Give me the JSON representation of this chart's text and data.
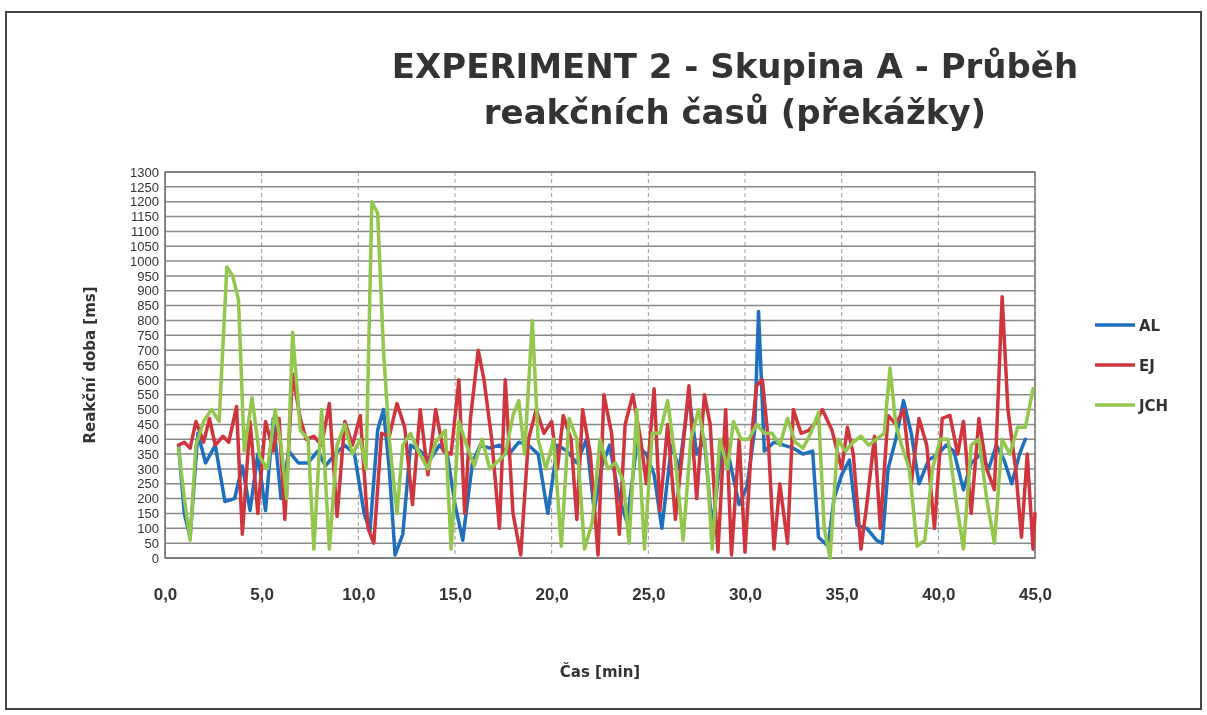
{
  "chart_data": {
    "type": "line",
    "title": "EXPERIMENT 2 - Skupina A - Průběh reakčních časů (překážky)",
    "xlabel": "Čas [min]",
    "ylabel": "Reakční doba [ms]",
    "xlim": [
      0,
      45
    ],
    "xticks": [
      {
        "value": 0,
        "label": "0,0"
      },
      {
        "value": 5,
        "label": "5,0"
      },
      {
        "value": 10,
        "label": "10,0"
      },
      {
        "value": 15,
        "label": "15,0"
      },
      {
        "value": 20,
        "label": "20,0"
      },
      {
        "value": 25,
        "label": "25,0"
      },
      {
        "value": 30,
        "label": "30,0"
      },
      {
        "value": 35,
        "label": "35,0"
      },
      {
        "value": 40,
        "label": "40,0"
      },
      {
        "value": 45,
        "label": "45,0"
      }
    ],
    "ylim": [
      0,
      1300
    ],
    "yticks": [
      0,
      50,
      100,
      150,
      200,
      250,
      300,
      350,
      400,
      450,
      500,
      550,
      600,
      650,
      700,
      750,
      800,
      850,
      900,
      950,
      1000,
      1050,
      1100,
      1150,
      1200,
      1250,
      1300
    ],
    "grid": true,
    "legend": "right",
    "line_style": "solid",
    "series": [
      {
        "name": "AL",
        "color": "#1f6fbf",
        "x": [
          0.7,
          1.0,
          1.3,
          1.7,
          2.1,
          2.6,
          3.1,
          3.6,
          4.0,
          4.4,
          4.8,
          5.2,
          5.6,
          6.0,
          6.4,
          6.9,
          7.4,
          7.9,
          8.3,
          8.8,
          9.3,
          9.8,
          10.3,
          10.6,
          11.0,
          11.3,
          11.6,
          11.9,
          12.3,
          12.7,
          13.2,
          13.7,
          14.2,
          14.6,
          15.0,
          15.4,
          15.9,
          16.3,
          16.8,
          17.3,
          17.8,
          18.3,
          18.8,
          19.3,
          19.8,
          20.3,
          20.8,
          21.3,
          21.8,
          22.2,
          22.6,
          23.0,
          23.5,
          23.9,
          24.4,
          24.9,
          25.3,
          25.7,
          26.2,
          26.6,
          27.1,
          27.5,
          27.9,
          28.3,
          28.8,
          29.2,
          29.7,
          30.1,
          30.5,
          30.7,
          31.0,
          31.5,
          32.0,
          32.5,
          33.0,
          33.5,
          33.8,
          34.3,
          34.6,
          35.0,
          35.4,
          35.8,
          36.3,
          36.8,
          37.1,
          37.4,
          37.8,
          38.2,
          38.6,
          39.0,
          39.5,
          40.0,
          40.4,
          40.8,
          41.3,
          41.7,
          42.2,
          42.6,
          43.0,
          43.4,
          43.8,
          44.2,
          44.5
        ],
        "values": [
          380,
          150,
          70,
          420,
          320,
          380,
          190,
          200,
          310,
          160,
          350,
          160,
          470,
          200,
          360,
          320,
          320,
          360,
          310,
          350,
          380,
          350,
          150,
          90,
          430,
          500,
          300,
          10,
          80,
          380,
          360,
          330,
          380,
          350,
          180,
          60,
          320,
          380,
          370,
          380,
          350,
          390,
          380,
          350,
          150,
          380,
          360,
          320,
          400,
          160,
          310,
          380,
          200,
          120,
          380,
          350,
          280,
          100,
          380,
          300,
          550,
          350,
          400,
          100,
          370,
          330,
          180,
          240,
          430,
          830,
          360,
          390,
          380,
          370,
          350,
          360,
          70,
          40,
          200,
          280,
          330,
          110,
          100,
          60,
          50,
          300,
          400,
          530,
          420,
          250,
          330,
          350,
          380,
          360,
          230,
          320,
          350,
          300,
          380,
          330,
          250,
          350,
          400
        ]
      },
      {
        "name": "EJ",
        "color": "#d0343c",
        "x": [
          0.7,
          1.0,
          1.3,
          1.6,
          2.0,
          2.3,
          2.6,
          3.0,
          3.3,
          3.7,
          4.0,
          4.4,
          4.8,
          5.2,
          5.6,
          5.9,
          6.2,
          6.6,
          7.0,
          7.3,
          7.7,
          8.1,
          8.5,
          8.9,
          9.3,
          9.7,
          10.1,
          10.5,
          10.8,
          11.2,
          11.6,
          12.0,
          12.4,
          12.8,
          13.2,
          13.6,
          14.0,
          14.4,
          14.8,
          15.2,
          15.5,
          15.8,
          16.2,
          16.5,
          16.9,
          17.3,
          17.6,
          18.0,
          18.4,
          18.8,
          19.2,
          19.6,
          20.0,
          20.3,
          20.6,
          21.0,
          21.3,
          21.6,
          22.0,
          22.4,
          22.7,
          23.1,
          23.5,
          23.8,
          24.2,
          24.6,
          24.9,
          25.3,
          25.6,
          26.0,
          26.4,
          26.8,
          27.1,
          27.5,
          27.9,
          28.2,
          28.6,
          29.0,
          29.3,
          29.7,
          30.0,
          30.4,
          30.6,
          30.9,
          31.2,
          31.5,
          31.8,
          32.2,
          32.5,
          32.9,
          33.3,
          33.7,
          34.0,
          34.5,
          35.0,
          35.3,
          35.6,
          36.0,
          36.3,
          36.7,
          37.0,
          37.4,
          37.8,
          38.2,
          38.6,
          39.0,
          39.4,
          39.8,
          40.2,
          40.6,
          41.0,
          41.3,
          41.7,
          42.1,
          42.5,
          42.9,
          43.3,
          43.6,
          44.0,
          44.3,
          44.6,
          44.9,
          45.0
        ],
        "values": [
          380,
          390,
          370,
          460,
          390,
          470,
          380,
          410,
          390,
          510,
          80,
          460,
          150,
          460,
          360,
          470,
          130,
          620,
          470,
          400,
          410,
          380,
          520,
          140,
          460,
          380,
          480,
          100,
          50,
          420,
          410,
          520,
          440,
          180,
          500,
          280,
          500,
          360,
          350,
          600,
          150,
          470,
          700,
          600,
          400,
          100,
          600,
          150,
          10,
          400,
          500,
          420,
          460,
          300,
          480,
          400,
          130,
          500,
          350,
          10,
          550,
          420,
          80,
          450,
          550,
          400,
          250,
          570,
          160,
          450,
          130,
          380,
          580,
          200,
          550,
          450,
          20,
          500,
          10,
          400,
          20,
          450,
          580,
          600,
          400,
          30,
          250,
          50,
          500,
          420,
          430,
          460,
          500,
          430,
          300,
          440,
          350,
          30,
          180,
          410,
          100,
          480,
          450,
          500,
          250,
          470,
          380,
          100,
          470,
          480,
          350,
          460,
          150,
          470,
          300,
          230,
          880,
          500,
          300,
          70,
          350,
          30,
          150
        ]
      },
      {
        "name": "JCH",
        "color": "#92c64c",
        "x": [
          0.7,
          1.0,
          1.3,
          1.6,
          2.0,
          2.4,
          2.8,
          3.2,
          3.5,
          3.8,
          4.1,
          4.5,
          4.9,
          5.3,
          5.7,
          6.0,
          6.3,
          6.6,
          7.0,
          7.4,
          7.7,
          8.1,
          8.5,
          8.9,
          9.3,
          9.7,
          10.1,
          10.4,
          10.7,
          11.0,
          11.3,
          11.6,
          12.0,
          12.3,
          12.7,
          13.1,
          13.6,
          14.0,
          14.5,
          14.8,
          15.2,
          15.6,
          16.0,
          16.4,
          16.8,
          17.3,
          17.6,
          18.0,
          18.3,
          18.6,
          19.0,
          19.3,
          19.7,
          20.1,
          20.5,
          20.9,
          21.3,
          21.7,
          22.1,
          22.5,
          22.9,
          23.3,
          23.7,
          24.0,
          24.4,
          24.8,
          25.2,
          25.6,
          26.0,
          26.4,
          26.8,
          27.2,
          27.6,
          28.0,
          28.3,
          28.7,
          29.1,
          29.4,
          29.8,
          30.2,
          30.6,
          31.0,
          31.4,
          31.8,
          32.2,
          32.6,
          33.0,
          33.4,
          33.8,
          34.1,
          34.4,
          34.8,
          35.2,
          35.6,
          36.0,
          36.4,
          36.8,
          37.2,
          37.5,
          37.8,
          38.1,
          38.5,
          38.9,
          39.3,
          39.7,
          40.1,
          40.5,
          40.9,
          41.3,
          41.7,
          42.1,
          42.5,
          42.9,
          43.3,
          43.7,
          44.1,
          44.5,
          44.9
        ],
        "values": [
          370,
          200,
          60,
          380,
          460,
          500,
          460,
          980,
          950,
          870,
          360,
          540,
          340,
          300,
          500,
          380,
          200,
          760,
          430,
          400,
          30,
          500,
          30,
          380,
          450,
          350,
          400,
          300,
          1200,
          1160,
          700,
          400,
          150,
          380,
          420,
          360,
          300,
          390,
          430,
          30,
          460,
          380,
          310,
          400,
          300,
          330,
          350,
          480,
          530,
          350,
          800,
          400,
          300,
          400,
          40,
          470,
          400,
          30,
          120,
          400,
          300,
          320,
          260,
          50,
          500,
          30,
          420,
          420,
          530,
          330,
          60,
          400,
          500,
          350,
          30,
          400,
          300,
          460,
          400,
          400,
          450,
          420,
          420,
          380,
          470,
          390,
          370,
          420,
          490,
          100,
          0,
          400,
          360,
          390,
          410,
          380,
          400,
          420,
          640,
          450,
          380,
          300,
          40,
          60,
          300,
          400,
          400,
          200,
          30,
          380,
          400,
          200,
          50,
          400,
          350,
          440,
          440,
          570
        ]
      }
    ]
  }
}
